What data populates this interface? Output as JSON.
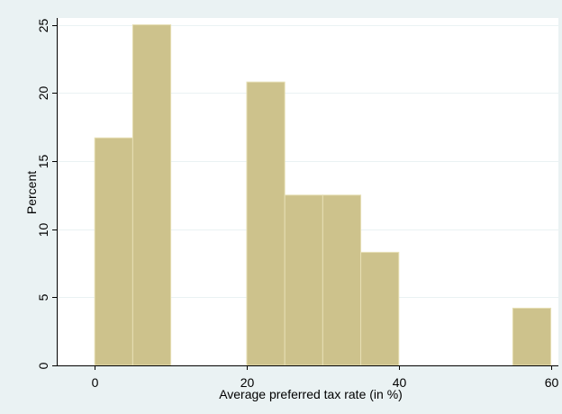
{
  "chart_data": {
    "type": "bar",
    "histogram": true,
    "title": "",
    "xlabel": "Average preferred tax rate (in %)",
    "ylabel": "Percent",
    "xlim": [
      -5,
      61
    ],
    "ylim": [
      0,
      25.5
    ],
    "x_ticks": [
      0,
      20,
      40,
      60
    ],
    "y_ticks": [
      0,
      5,
      10,
      15,
      20,
      25
    ],
    "grid": true,
    "bins": [
      {
        "x0": 0,
        "x1": 5,
        "value": 16.7
      },
      {
        "x0": 5,
        "x1": 10,
        "value": 25.0
      },
      {
        "x0": 20,
        "x1": 25,
        "value": 20.8
      },
      {
        "x0": 25,
        "x1": 30,
        "value": 12.5
      },
      {
        "x0": 30,
        "x1": 35,
        "value": 12.5
      },
      {
        "x0": 35,
        "x1": 40,
        "value": 8.3
      },
      {
        "x0": 55,
        "x1": 60,
        "value": 4.2
      }
    ],
    "colors": {
      "bar_fill": "#CDC28C",
      "bar_stroke": "#E6DFB4",
      "outer_background": "#EAF2F3",
      "plot_background": "#FFFFFF",
      "gridline": "#EAF2F3",
      "axis": "#000000"
    }
  }
}
